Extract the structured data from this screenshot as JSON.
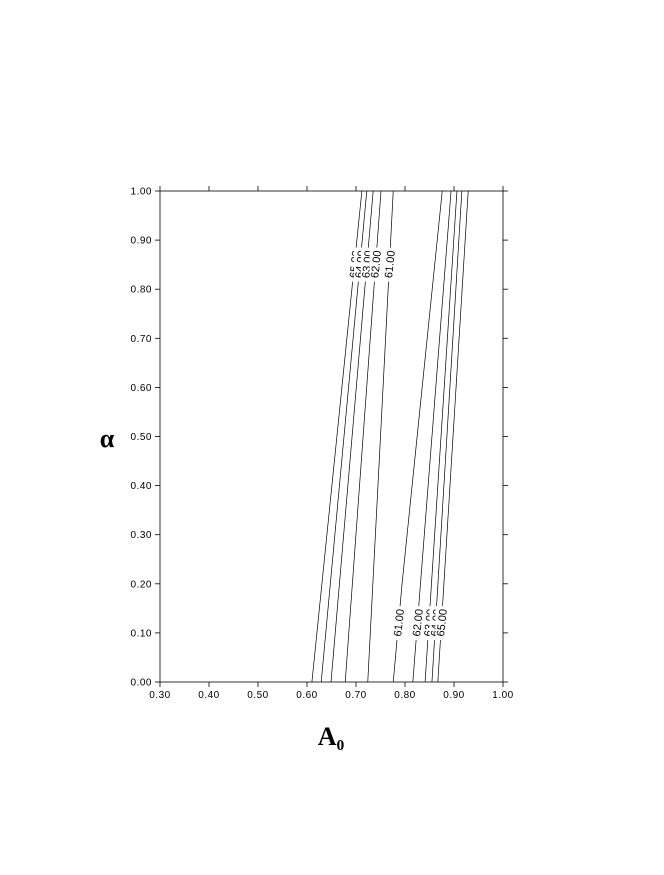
{
  "chart_data": {
    "type": "contour",
    "xlabel": "A₀",
    "ylabel": "α",
    "xlim": [
      0.3,
      1.0
    ],
    "ylim": [
      0.0,
      1.0
    ],
    "xticks": [
      {
        "value": 0.3,
        "label": "0.30"
      },
      {
        "value": 0.4,
        "label": "0.40"
      },
      {
        "value": 0.5,
        "label": "0.50"
      },
      {
        "value": 0.6,
        "label": "0.60"
      },
      {
        "value": 0.7,
        "label": "0.70"
      },
      {
        "value": 0.8,
        "label": "0.80"
      },
      {
        "value": 0.9,
        "label": "0.90"
      },
      {
        "value": 1.0,
        "label": "1.00"
      }
    ],
    "yticks": [
      {
        "value": 0.0,
        "label": "0.00"
      },
      {
        "value": 0.1,
        "label": "0.10"
      },
      {
        "value": 0.2,
        "label": "0.20"
      },
      {
        "value": 0.3,
        "label": "0.30"
      },
      {
        "value": 0.4,
        "label": "0.40"
      },
      {
        "value": 0.5,
        "label": "0.50"
      },
      {
        "value": 0.6,
        "label": "0.60"
      },
      {
        "value": 0.7,
        "label": "0.70"
      },
      {
        "value": 0.8,
        "label": "0.80"
      },
      {
        "value": 0.9,
        "label": "0.90"
      },
      {
        "value": 1.0,
        "label": "1.00"
      }
    ],
    "color": "#000000",
    "series": [
      {
        "name": "65.00",
        "x": [
          0.61,
          0.712
        ],
        "y": [
          0.0,
          1.0
        ]
      },
      {
        "name": "64.00",
        "x": [
          0.629,
          0.722
        ],
        "y": [
          0.0,
          1.0
        ]
      },
      {
        "name": "63.00",
        "x": [
          0.649,
          0.735
        ],
        "y": [
          0.0,
          1.0
        ]
      },
      {
        "name": "62.00",
        "x": [
          0.678,
          0.751
        ],
        "y": [
          0.0,
          1.0
        ]
      },
      {
        "name": "61.00",
        "x": [
          0.724,
          0.776
        ],
        "y": [
          0.0,
          1.0
        ]
      },
      {
        "name": "61.00",
        "x": [
          0.776,
          0.794,
          0.876
        ],
        "y": [
          0.0,
          0.2,
          1.0
        ]
      },
      {
        "name": "62.00",
        "x": [
          0.816,
          0.894
        ],
        "y": [
          0.0,
          1.0
        ]
      },
      {
        "name": "63.00",
        "x": [
          0.841,
          0.906
        ],
        "y": [
          0.0,
          1.0
        ]
      },
      {
        "name": "64.00",
        "x": [
          0.855,
          0.916
        ],
        "y": [
          0.0,
          1.0
        ]
      },
      {
        "name": "65.00",
        "x": [
          0.867,
          0.929
        ],
        "y": [
          0.0,
          1.0
        ]
      }
    ]
  }
}
